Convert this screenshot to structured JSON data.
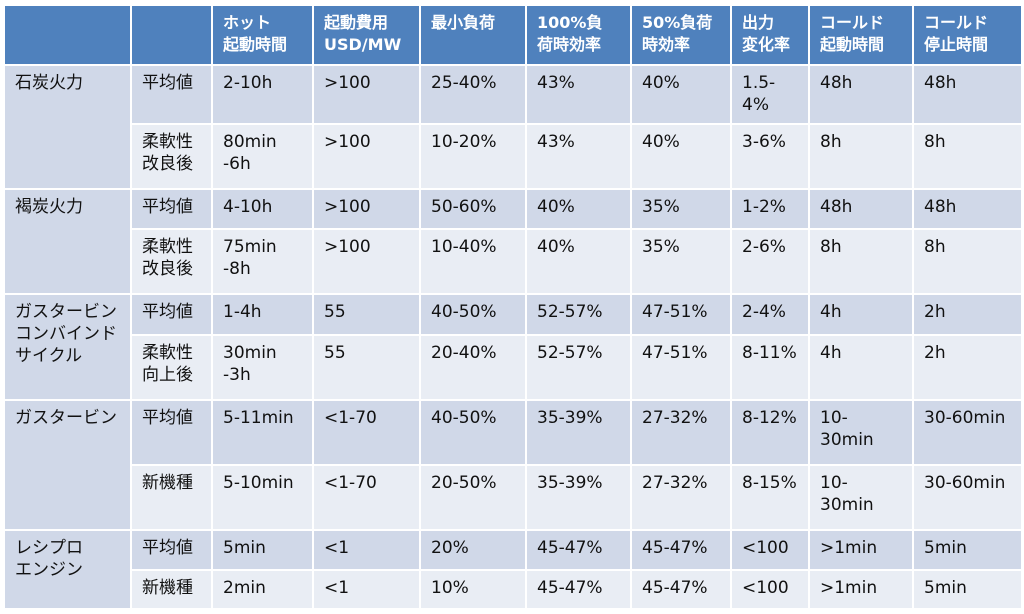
{
  "table": {
    "headers": [
      "",
      "",
      "ホット\n起動時間",
      "起動費用\nUSD/MW",
      "最小負荷",
      "100%負\n荷時効率",
      "50%負荷\n時効率",
      "出力\n変化率",
      "コールド\n起動時間",
      "コールド\n停止時間"
    ],
    "groups": [
      {
        "label": "石炭火力",
        "rows": [
          {
            "sub": "平均値",
            "cells": [
              "2-10h",
              ">100",
              "25-40%",
              "43%",
              "40%",
              "1.5-\n4%",
              "48h",
              "48h"
            ]
          },
          {
            "sub": "柔軟性\n改良後",
            "cells": [
              "80min\n-6h",
              ">100",
              "10-20%",
              "43%",
              "40%",
              "3-6%",
              "8h",
              "8h"
            ]
          }
        ]
      },
      {
        "label": "褐炭火力",
        "rows": [
          {
            "sub": "平均値",
            "cells": [
              "4-10h",
              ">100",
              "50-60%",
              "40%",
              "35%",
              "1-2%",
              "48h",
              "48h"
            ]
          },
          {
            "sub": "柔軟性\n改良後",
            "cells": [
              "75min\n-8h",
              ">100",
              "10-40%",
              "40%",
              "35%",
              "2-6%",
              "8h",
              "8h"
            ]
          }
        ]
      },
      {
        "label": "ガスタービン\nコンバインド\nサイクル",
        "rows": [
          {
            "sub": "平均値",
            "cells": [
              "1-4h",
              "55",
              "40-50%",
              "52-57%",
              "47-51%",
              "2-4%",
              "4h",
              "2h"
            ]
          },
          {
            "sub": "柔軟性\n向上後",
            "cells": [
              "30min\n-3h",
              "55",
              "20-40%",
              "52-57%",
              "47-51%",
              "8-11%",
              "4h",
              "2h"
            ]
          }
        ]
      },
      {
        "label": "ガスタービン",
        "rows": [
          {
            "sub": "平均値",
            "cells": [
              "5-11min",
              "<1-70",
              "40-50%",
              "35-39%",
              "27-32%",
              "8-12%",
              "10-\n30min",
              "30-60min"
            ]
          },
          {
            "sub": "新機種",
            "cells": [
              "5-10min",
              "<1-70",
              "20-50%",
              "35-39%",
              "27-32%",
              "8-15%",
              "10-\n30min",
              "30-60min"
            ]
          }
        ]
      },
      {
        "label": "レシプロ\nエンジン",
        "rows": [
          {
            "sub": "平均値",
            "cells": [
              "5min",
              "<1",
              "20%",
              "45-47%",
              "45-47%",
              "<100",
              ">1min",
              "5min"
            ]
          },
          {
            "sub": "新機種",
            "cells": [
              "2min",
              "<1",
              "10%",
              "45-47%",
              "45-47%",
              "<100",
              ">1min",
              "5min"
            ]
          }
        ]
      }
    ]
  }
}
